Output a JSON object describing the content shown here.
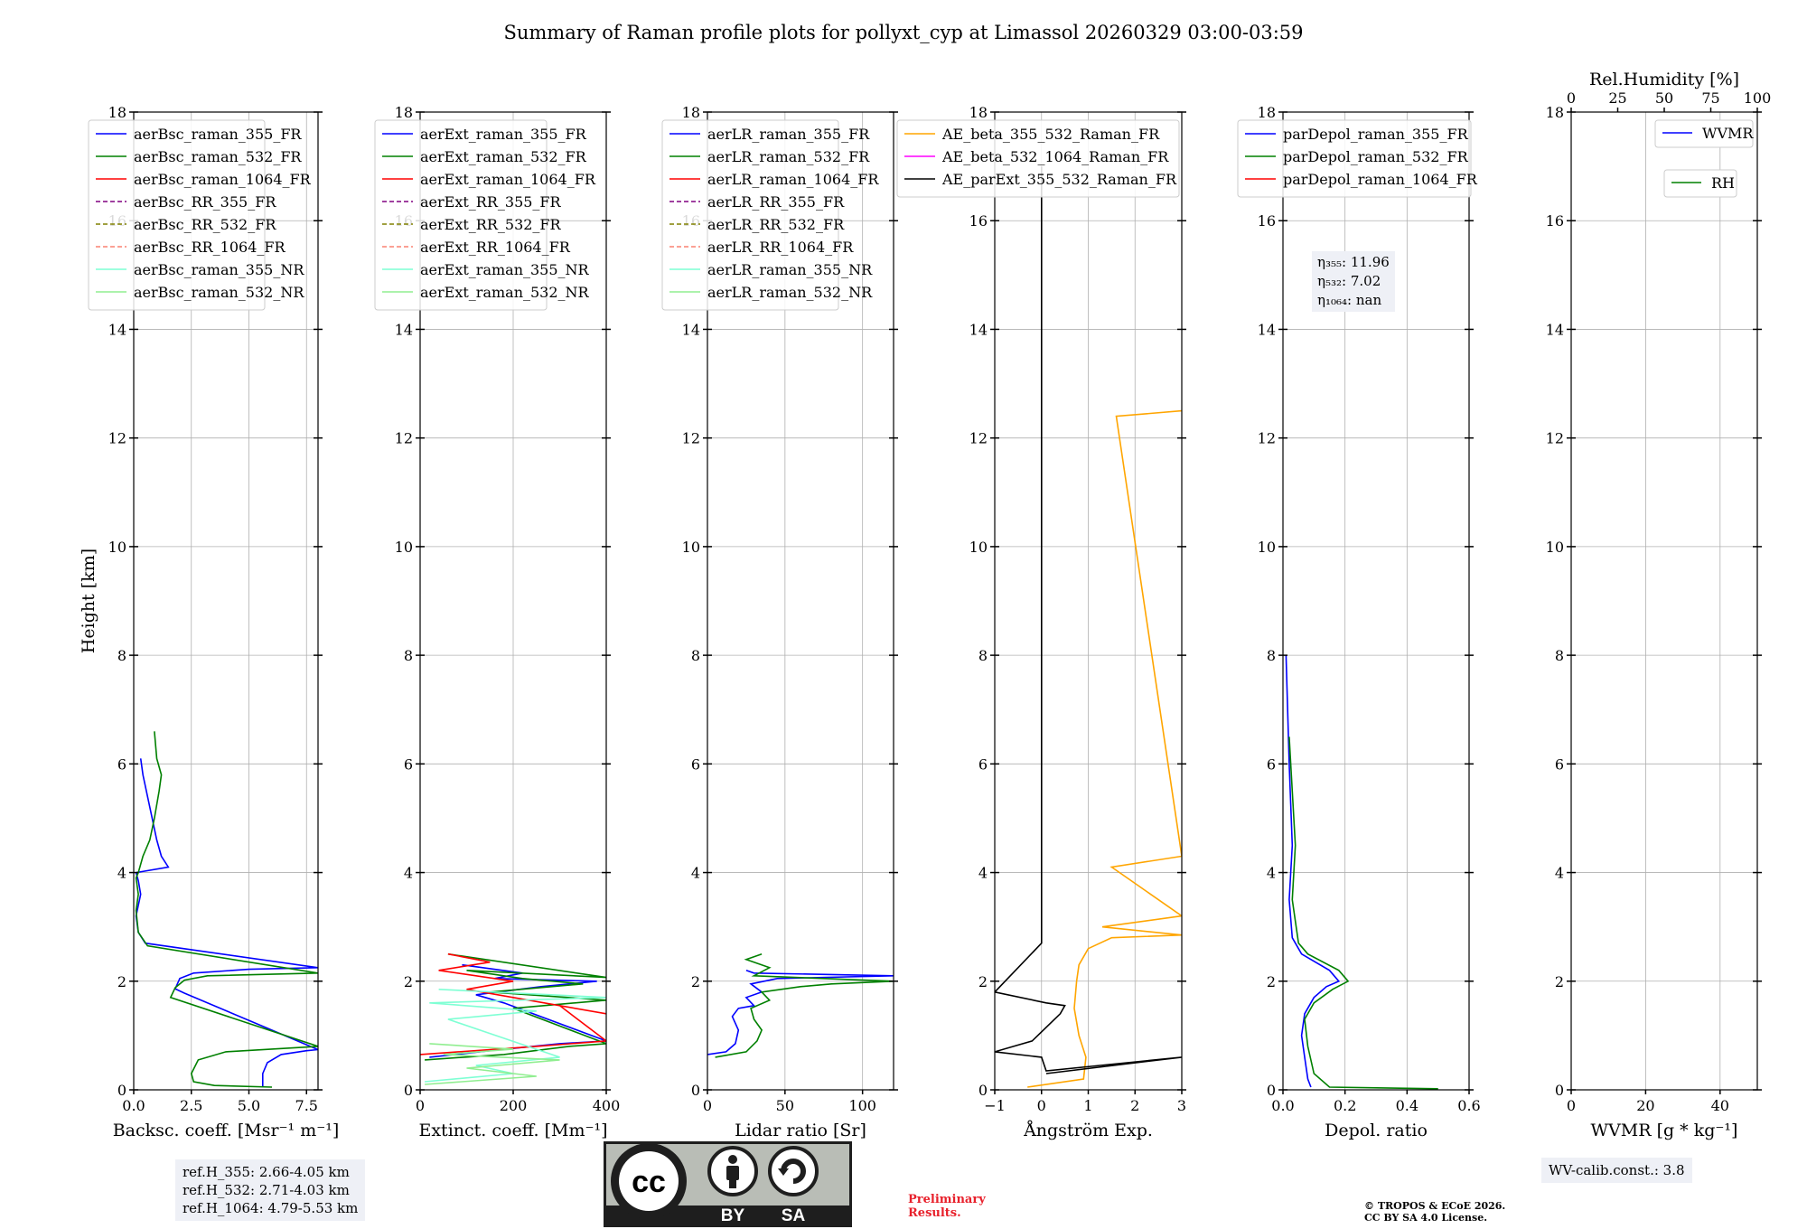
{
  "title": "Summary of Raman profile plots for pollyxt_cyp at Limassol 20260329 03:00-03:59",
  "colors": {
    "blue": "#0000ff",
    "green": "#008000",
    "red": "#ff0000",
    "purple": "#800080",
    "olive": "#808000",
    "salmon": "#fa8072",
    "cyan": "#7fffd4",
    "lightgreen": "#90ee90",
    "orange": "#ffa500",
    "magenta": "#ff00ff",
    "black": "#000000",
    "prelim_red": "#e8202b"
  },
  "chart_data": [
    {
      "type": "line",
      "id": "bsc",
      "xlabel": "Backsc. coeff. [Msr⁻¹ m⁻¹]",
      "ylabel": "Height [km]",
      "xlim": [
        0,
        8
      ],
      "ylim": [
        0,
        18
      ],
      "xticks": [
        0,
        2.5,
        5,
        7.5
      ],
      "xtick_labels": [
        "0.0",
        "2.5",
        "5.0",
        "7.5"
      ],
      "yticks": [
        0,
        2,
        4,
        6,
        8,
        10,
        12,
        14,
        16,
        18
      ],
      "ytick_labels": [
        "0",
        "2",
        "4",
        "6",
        "8",
        "10",
        "12",
        "14",
        "16",
        "18"
      ],
      "grid": true,
      "legend_position": "top-left",
      "legend": [
        {
          "label": "aerBsc_raman_355_FR",
          "color": "#0000ff",
          "dash": false
        },
        {
          "label": "aerBsc_raman_532_FR",
          "color": "#008000",
          "dash": false
        },
        {
          "label": "aerBsc_raman_1064_FR",
          "color": "#ff0000",
          "dash": false
        },
        {
          "label": "aerBsc_RR_355_FR",
          "color": "#800080",
          "dash": true
        },
        {
          "label": "aerBsc_RR_532_FR",
          "color": "#808000",
          "dash": true
        },
        {
          "label": "aerBsc_RR_1064_FR",
          "color": "#fa8072",
          "dash": true
        },
        {
          "label": "aerBsc_raman_355_NR",
          "color": "#7fffd4",
          "dash": false
        },
        {
          "label": "aerBsc_raman_532_NR",
          "color": "#90ee90",
          "dash": false
        }
      ],
      "series": [
        {
          "name": "aerBsc_raman_355_FR",
          "color": "#0000ff",
          "x": [
            5.6,
            5.6,
            5.8,
            6.4,
            7.5,
            8,
            2.2,
            1.8,
            2,
            2.6,
            5,
            8,
            0.5,
            0.2,
            0.1,
            0.3,
            0.2,
            0.1,
            1.5,
            1.2,
            1,
            0.8,
            0.6,
            0.4,
            0.3
          ],
          "y": [
            0.05,
            0.3,
            0.5,
            0.65,
            0.72,
            0.74,
            1.78,
            1.86,
            2.05,
            2.15,
            2.22,
            2.25,
            2.7,
            2.9,
            3.2,
            3.6,
            3.85,
            4,
            4.1,
            4.3,
            4.6,
            5,
            5.4,
            5.8,
            6.1
          ]
        },
        {
          "name": "aerBsc_raman_532_FR",
          "color": "#008000",
          "x": [
            6,
            3.5,
            2.6,
            2.5,
            2.8,
            4,
            8,
            1.6,
            1.8,
            2.2,
            3.2,
            8,
            0.6,
            0.2,
            0.1,
            0.2,
            0.1,
            0.2,
            0.4,
            0.7,
            0.9,
            1.1,
            1.2,
            1,
            0.9
          ],
          "y": [
            0.05,
            0.08,
            0.15,
            0.3,
            0.55,
            0.7,
            0.8,
            1.7,
            1.88,
            2.02,
            2.1,
            2.15,
            2.65,
            2.9,
            3.3,
            3.6,
            3.9,
            4,
            4.3,
            4.6,
            5,
            5.5,
            5.8,
            6.1,
            6.6
          ]
        }
      ]
    },
    {
      "type": "line",
      "id": "ext",
      "xlabel": "Extinct. coeff. [Mm⁻¹]",
      "xlim": [
        0,
        400
      ],
      "ylim": [
        0,
        18
      ],
      "xticks": [
        0,
        200,
        400
      ],
      "xtick_labels": [
        "0",
        "200",
        "400"
      ],
      "yticks": [
        0,
        2,
        4,
        6,
        8,
        10,
        12,
        14,
        16,
        18
      ],
      "ytick_labels": [
        "0",
        "2",
        "4",
        "6",
        "8",
        "10",
        "12",
        "14",
        "16",
        "18"
      ],
      "grid": true,
      "legend_position": "top-left",
      "legend": [
        {
          "label": "aerExt_raman_355_FR",
          "color": "#0000ff",
          "dash": false
        },
        {
          "label": "aerExt_raman_532_FR",
          "color": "#008000",
          "dash": false
        },
        {
          "label": "aerExt_raman_1064_FR",
          "color": "#ff0000",
          "dash": false
        },
        {
          "label": "aerExt_RR_355_FR",
          "color": "#800080",
          "dash": true
        },
        {
          "label": "aerExt_RR_532_FR",
          "color": "#808000",
          "dash": true
        },
        {
          "label": "aerExt_RR_1064_FR",
          "color": "#fa8072",
          "dash": true
        },
        {
          "label": "aerExt_raman_355_NR",
          "color": "#7fffd4",
          "dash": false
        },
        {
          "label": "aerExt_raman_532_NR",
          "color": "#90ee90",
          "dash": false
        }
      ],
      "series": [
        {
          "name": "aerExt_raman_355_FR",
          "color": "#0000ff",
          "x": [
            20,
            150,
            300,
            400,
            180,
            120,
            260,
            380,
            160,
            220,
            90
          ],
          "y": [
            0.6,
            0.72,
            0.85,
            0.9,
            1.6,
            1.75,
            1.9,
            2.0,
            2.05,
            2.15,
            2.3
          ]
        },
        {
          "name": "aerExt_raman_532_FR",
          "color": "#008000",
          "x": [
            10,
            180,
            320,
            400,
            200,
            400,
            150,
            350,
            220,
            100,
            400,
            60
          ],
          "y": [
            0.55,
            0.65,
            0.8,
            0.85,
            1.5,
            1.65,
            1.8,
            1.95,
            2.05,
            2.2,
            2.07,
            2.5
          ]
        },
        {
          "name": "aerExt_raman_1064_FR",
          "color": "#ff0000",
          "x": [
            0,
            250,
            400,
            300,
            400,
            100,
            200,
            40,
            150,
            60
          ],
          "y": [
            0.65,
            0.8,
            0.9,
            1.55,
            1.4,
            1.85,
            2.0,
            2.2,
            2.35,
            2.5
          ]
        },
        {
          "name": "aerExt_raman_355_NR",
          "color": "#7fffd4",
          "x": [
            10,
            200,
            120,
            300,
            60,
            250,
            20,
            400,
            40
          ],
          "y": [
            0.15,
            0.3,
            0.45,
            0.6,
            1.3,
            1.45,
            1.6,
            1.7,
            1.85
          ]
        },
        {
          "name": "aerExt_raman_532_NR",
          "color": "#90ee90",
          "x": [
            10,
            250,
            100,
            300,
            50,
            200,
            20
          ],
          "y": [
            0.1,
            0.25,
            0.4,
            0.55,
            0.65,
            0.75,
            0.85
          ]
        }
      ]
    },
    {
      "type": "line",
      "id": "lr",
      "xlabel": "Lidar ratio [Sr]",
      "xlim": [
        0,
        120
      ],
      "ylim": [
        0,
        18
      ],
      "xticks": [
        0,
        50,
        100
      ],
      "xtick_labels": [
        "0",
        "50",
        "100"
      ],
      "yticks": [
        0,
        2,
        4,
        6,
        8,
        10,
        12,
        14,
        16,
        18
      ],
      "ytick_labels": [
        "0",
        "2",
        "4",
        "6",
        "8",
        "10",
        "12",
        "14",
        "16",
        "18"
      ],
      "grid": true,
      "legend_position": "top-left",
      "legend": [
        {
          "label": "aerLR_raman_355_FR",
          "color": "#0000ff",
          "dash": false
        },
        {
          "label": "aerLR_raman_532_FR",
          "color": "#008000",
          "dash": false
        },
        {
          "label": "aerLR_raman_1064_FR",
          "color": "#ff0000",
          "dash": false
        },
        {
          "label": "aerLR_RR_355_FR",
          "color": "#800080",
          "dash": true
        },
        {
          "label": "aerLR_RR_532_FR",
          "color": "#808000",
          "dash": true
        },
        {
          "label": "aerLR_RR_1064_FR",
          "color": "#fa8072",
          "dash": true
        },
        {
          "label": "aerLR_raman_355_NR",
          "color": "#7fffd4",
          "dash": false
        },
        {
          "label": "aerLR_raman_532_NR",
          "color": "#90ee90",
          "dash": false
        }
      ],
      "series": [
        {
          "name": "aerLR_raman_355_FR",
          "color": "#0000ff",
          "x": [
            0,
            12,
            18,
            20,
            16,
            20,
            30,
            25,
            35,
            28,
            45,
            120,
            30,
            25
          ],
          "y": [
            0.65,
            0.7,
            0.85,
            1.1,
            1.35,
            1.5,
            1.55,
            1.7,
            1.8,
            1.95,
            2.05,
            2.1,
            2.15,
            2.2
          ]
        },
        {
          "name": "aerLR_raman_532_FR",
          "color": "#008000",
          "x": [
            5,
            25,
            32,
            35,
            30,
            28,
            40,
            35,
            60,
            80,
            120,
            30,
            40,
            25,
            35
          ],
          "y": [
            0.6,
            0.7,
            0.9,
            1.1,
            1.3,
            1.5,
            1.65,
            1.8,
            1.9,
            1.95,
            2.0,
            2.1,
            2.25,
            2.4,
            2.5
          ]
        }
      ]
    },
    {
      "type": "line",
      "id": "ae",
      "xlabel": "Ångström Exp.",
      "xlim": [
        -1,
        3
      ],
      "ylim": [
        0,
        18
      ],
      "xticks": [
        -1,
        0,
        1,
        2,
        3
      ],
      "xtick_labels": [
        "−1",
        "0",
        "1",
        "2",
        "3"
      ],
      "yticks": [
        0,
        2,
        4,
        6,
        8,
        10,
        12,
        14,
        16,
        18
      ],
      "ytick_labels": [
        "0",
        "2",
        "4",
        "6",
        "8",
        "10",
        "12",
        "14",
        "16",
        "18"
      ],
      "grid": true,
      "legend_position": "top-right",
      "legend": [
        {
          "label": "AE_beta_355_532_Raman_FR",
          "color": "#ffa500",
          "dash": false
        },
        {
          "label": "AE_beta_532_1064_Raman_FR",
          "color": "#ff00ff",
          "dash": false
        },
        {
          "label": "AE_parExt_355_532_Raman_FR",
          "color": "#000000",
          "dash": false
        }
      ],
      "series": [
        {
          "name": "AE_beta_355_532_Raman_FR",
          "color": "#ffa500",
          "x": [
            -0.3,
            0.9,
            0.95,
            0.8,
            0.7,
            0.75,
            0.8,
            1.0,
            1.5,
            3,
            1.3,
            3,
            1.5,
            3,
            1.6,
            3
          ],
          "y": [
            0.05,
            0.2,
            0.6,
            1.0,
            1.5,
            2.0,
            2.3,
            2.6,
            2.8,
            2.85,
            3.0,
            3.2,
            4.1,
            4.3,
            12.4,
            12.5
          ]
        },
        {
          "name": "AE_parExt_355_532_Raman_FR",
          "color": "#000000",
          "x": [
            0.1,
            3,
            0.1,
            0,
            -1,
            -0.2,
            0.4,
            0.5,
            0.1,
            -1,
            0,
            0
          ],
          "y": [
            0.3,
            0.6,
            0.35,
            0.6,
            0.7,
            0.9,
            1.4,
            1.55,
            1.6,
            1.8,
            2.7,
            17.0
          ]
        }
      ]
    },
    {
      "type": "line",
      "id": "depol",
      "xlabel": "Depol. ratio",
      "xlim": [
        0,
        0.6
      ],
      "ylim": [
        0,
        18
      ],
      "xticks": [
        0,
        0.2,
        0.4,
        0.6
      ],
      "xtick_labels": [
        "0.0",
        "0.2",
        "0.4",
        "0.6"
      ],
      "yticks": [
        0,
        2,
        4,
        6,
        8,
        10,
        12,
        14,
        16,
        18
      ],
      "ytick_labels": [
        "0",
        "2",
        "4",
        "6",
        "8",
        "10",
        "12",
        "14",
        "16",
        "18"
      ],
      "grid": true,
      "legend_position": "top-left",
      "legend": [
        {
          "label": "parDepol_raman_355_FR",
          "color": "#0000ff",
          "dash": false
        },
        {
          "label": "parDepol_raman_532_FR",
          "color": "#008000",
          "dash": false
        },
        {
          "label": "parDepol_raman_1064_FR",
          "color": "#ff0000",
          "dash": false
        }
      ],
      "series": [
        {
          "name": "parDepol_raman_355_FR",
          "color": "#0000ff",
          "x": [
            0.09,
            0.08,
            0.07,
            0.06,
            0.07,
            0.1,
            0.14,
            0.18,
            0.15,
            0.06,
            0.03,
            0.02,
            0.03,
            0.02,
            0.01
          ],
          "y": [
            0.05,
            0.2,
            0.6,
            1.0,
            1.4,
            1.7,
            1.9,
            2.0,
            2.2,
            2.5,
            2.8,
            3.5,
            4.5,
            6.0,
            8.0
          ]
        },
        {
          "name": "parDepol_raman_532_FR",
          "color": "#008000",
          "x": [
            0.5,
            0.15,
            0.1,
            0.08,
            0.07,
            0.1,
            0.16,
            0.21,
            0.18,
            0.08,
            0.05,
            0.03,
            0.04,
            0.02
          ],
          "y": [
            0.02,
            0.05,
            0.3,
            0.8,
            1.3,
            1.6,
            1.85,
            2.0,
            2.2,
            2.5,
            2.7,
            3.5,
            4.5,
            6.5
          ]
        }
      ]
    },
    {
      "type": "line",
      "id": "wv",
      "xlabel": "WVMR [g * kg⁻¹]",
      "xlim": [
        0,
        50
      ],
      "ylim": [
        0,
        18
      ],
      "xticks": [
        0,
        20,
        40
      ],
      "xtick_labels": [
        "0",
        "20",
        "40"
      ],
      "top_xlabel": "Rel.Humidity [%]",
      "top_xlim": [
        0,
        100
      ],
      "top_xticks": [
        0,
        25,
        50,
        75,
        100
      ],
      "top_xtick_labels": [
        "0",
        "25",
        "50",
        "75",
        "100"
      ],
      "yticks": [
        0,
        2,
        4,
        6,
        8,
        10,
        12,
        14,
        16,
        18
      ],
      "ytick_labels": [
        "0",
        "2",
        "4",
        "6",
        "8",
        "10",
        "12",
        "14",
        "16",
        "18"
      ],
      "grid": true,
      "legend_position": "top-right",
      "legend": [
        {
          "label": "WVMR",
          "color": "#0000ff",
          "dash": false
        },
        {
          "label": "RH",
          "color": "#008000",
          "dash": false
        }
      ]
    }
  ],
  "footer": {
    "ref_lines": [
      "ref.H_355: 2.66-4.05 km",
      "ref.H_532: 2.71-4.03 km",
      "ref.H_1064: 4.79-5.53 km"
    ],
    "eta_lines": [
      "η₃₅₅: 11.96",
      "η₅₃₂: 7.02",
      "η₁₀₆₄: nan"
    ],
    "wv_calib": "WV-calib.const.: 3.8",
    "preliminary": [
      "Preliminary",
      "Results."
    ],
    "copyright": [
      "© TROPOS & ECoE 2026.",
      "CC BY SA 4.0 License."
    ],
    "license_badge": {
      "cc": "cc",
      "by": "BY",
      "sa": "SA"
    }
  }
}
